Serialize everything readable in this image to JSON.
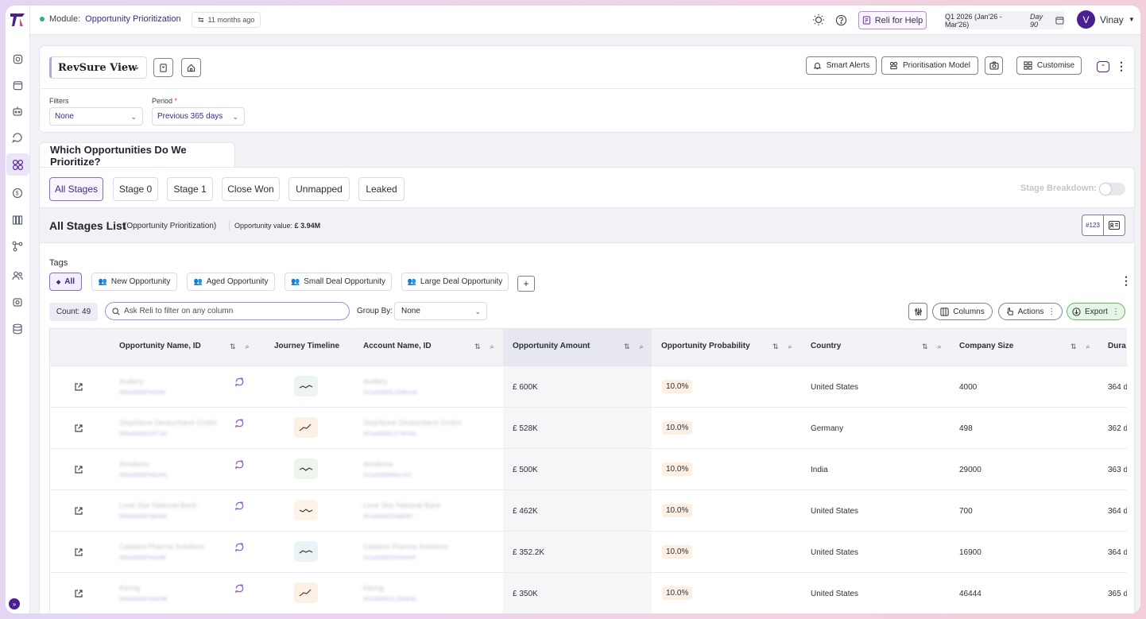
{
  "topbar": {
    "module_label": "Module:",
    "module_value": "Opportunity Prioritization",
    "updated": "11 months ago",
    "reli_help": "Reli for Help",
    "quarter_label": "Q1 2026 (Jan'26 - Mar'26)",
    "quarter_day": "Day 90",
    "user_initial": "V",
    "user_name": "Vinay"
  },
  "view": {
    "name": "RevSure View",
    "smart_alerts": "Smart Alerts",
    "prioritisation_model": "Prioritisation Model",
    "customise": "Customise",
    "filters_label": "Filters",
    "filters_value": "None",
    "period_label": "Period",
    "period_required": "*",
    "period_value": "Previous 365 days"
  },
  "section": {
    "title": "Which Opportunities Do We Prioritize?",
    "tabs": [
      {
        "label": "All Stages"
      },
      {
        "label": "Stage 0"
      },
      {
        "label": "Stage 1"
      },
      {
        "label": "Close Won"
      },
      {
        "label": "Unmapped"
      },
      {
        "label": "Leaked"
      }
    ],
    "stage_breakdown": "Stage Breakdown:"
  },
  "list": {
    "title": "All Stages List",
    "subtitle": "(Opportunity Prioritization)",
    "value_label": "Opportunity value:",
    "value": "£ 3.94M",
    "hash_btn": "#123",
    "tags_label": "Tags",
    "tags": [
      {
        "label": "All"
      },
      {
        "label": "New Opportunity"
      },
      {
        "label": "Aged Opportunity"
      },
      {
        "label": "Small Deal Opportunity"
      },
      {
        "label": "Large Deal Opportunity"
      }
    ],
    "count": "Count: 49",
    "search_placeholder": "Ask Reli to filter on any column",
    "group_by_label": "Group By:",
    "group_by_value": "None",
    "columns_btn": "Columns",
    "actions_btn": "Actions",
    "export_btn": "Export"
  },
  "table": {
    "headers": {
      "opp_name": "Opportunity Name, ID",
      "journey": "Journey Timeline",
      "account": "Account Name, ID",
      "amount": "Opportunity Amount",
      "probability": "Opportunity Probability",
      "country": "Country",
      "company_size": "Company Size",
      "duration": "Dura"
    },
    "rows": [
      {
        "opp_name": "Audiery",
        "opp_id": "006a00000Ya0Dfd",
        "account": "Audiery",
        "account_id": "001a00000LZ0dfk1d4",
        "amount": "£ 600K",
        "probability": "10.0%",
        "country": "United States",
        "company_size": "4000",
        "duration": "364 d",
        "journey_color": "#eef4f3"
      },
      {
        "opp_name": "StepStone Deutschland GmbH",
        "opp_id": "006a00000ZXF7a0",
        "account": "StepStone Deutschland GmbH",
        "account_id": "001a00000LZ7WH4a",
        "amount": "£ 528K",
        "probability": "10.0%",
        "country": "Germany",
        "company_size": "498",
        "duration": "362 d",
        "journey_color": "#fdf1e6"
      },
      {
        "opp_name": "Amaboss",
        "opp_id": "006a00000Ya0UHs",
        "account": "Amaboss",
        "account_id": "001a00000MeLKK1",
        "amount": "£ 500K",
        "probability": "10.0%",
        "country": "India",
        "company_size": "29000",
        "duration": "363 d",
        "journey_color": "#eef5ee"
      },
      {
        "opp_name": "Lone Star National Bank",
        "opp_id": "006a00000Y8b0A9",
        "account": "Lone Star National Bank",
        "account_id": "001a00000Z0eB0Kf",
        "amount": "£ 462K",
        "probability": "10.0%",
        "country": "United States",
        "company_size": "700",
        "duration": "364 d",
        "journey_color": "#fdf3e8"
      },
      {
        "opp_name": "Catalent Pharma Solutions",
        "opp_id": "006a00000Ya0a0E",
        "account": "Catalent Pharma Solutions",
        "account_id": "001a00000Z0hWeHF",
        "amount": "£ 352.2K",
        "probability": "10.0%",
        "country": "United States",
        "company_size": "16900",
        "duration": "364 d",
        "journey_color": "#eaf4f6"
      },
      {
        "opp_name": "Kering",
        "opp_id": "006a00000Ya0xHB",
        "account": "Kering",
        "account_id": "001M00001LZ9fsEAL",
        "amount": "£ 350K",
        "probability": "10.0%",
        "country": "United States",
        "company_size": "46444",
        "duration": "365 d",
        "journey_color": "#fdf1e6"
      }
    ]
  }
}
